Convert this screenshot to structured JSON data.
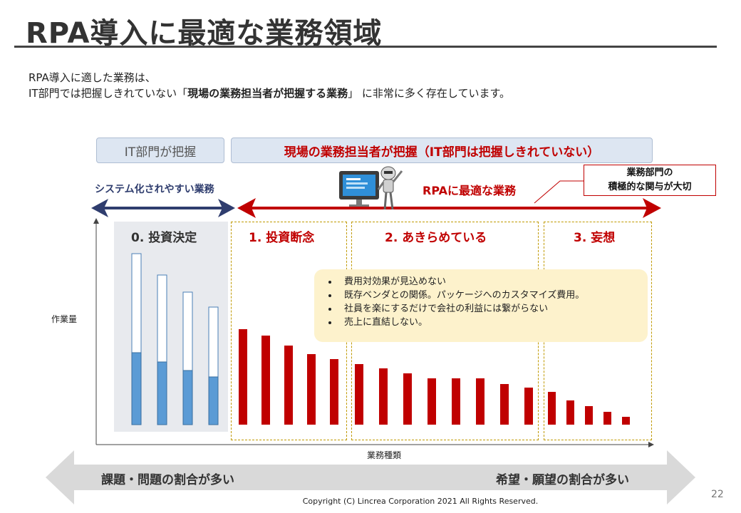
{
  "slide": {
    "title": "RPA導入に最適な業務領域",
    "intro_line1": "RPA導入に適した業務は、",
    "intro_line2_pre": "IT部門では把握しきれていない「",
    "intro_line2_bold": "現場の業務担当者が把握する業務",
    "intro_line2_post": "」 に非常に多く存在しています。",
    "page_number": "22",
    "copyright": "Copyright (C) Lincrea Corporation 2021 All Rights Reserved."
  },
  "header": {
    "it_label": "IT部門が把握",
    "field_label": "現場の業務担当者が把握（IT部門は把握しきれていない）"
  },
  "arrows": {
    "system_label": "システム化されやすい業務",
    "rpa_label": "RPAに最適な業務",
    "callout_line1": "業務部門の",
    "callout_line2": "積極的な関与が大切"
  },
  "sections": [
    {
      "label": "0. 投資決定"
    },
    {
      "label": "1. 投資断念"
    },
    {
      "label": "2. あきらめている"
    },
    {
      "label": "3. 妄想"
    }
  ],
  "notes": [
    "費用対効果が見込めない",
    "既存ベンダとの関係。パッケージへのカスタマイズ費用。",
    "社員を楽にするだけで会社の利益には繋がらない",
    "売上に直結しない。"
  ],
  "bottom": {
    "left_label": "課題・問題の割合が多い",
    "right_label": "希望・願望の割合が多い"
  },
  "colors": {
    "accent_red": "#c00000",
    "navy": "#2f3d6e",
    "bar_blue": "#5b9bd5",
    "highlight_yellow": "#fdf2cc"
  },
  "chart_data": {
    "type": "bar",
    "xlabel": "業務種類",
    "ylabel": "作業量",
    "ylim": [
      0,
      240
    ],
    "groups": [
      {
        "section": "0. 投資決定",
        "color": "#5b9bd5",
        "total": [
          240,
          210,
          186,
          165
        ],
        "filled": [
          101,
          88,
          76,
          67
        ]
      },
      {
        "section": "1. 投資断念",
        "color": "#c00000",
        "values": [
          134,
          125,
          111,
          99,
          92
        ]
      },
      {
        "section": "2. あきらめている",
        "color": "#c00000",
        "values": [
          85,
          79,
          72,
          65,
          65,
          65,
          57,
          52
        ]
      },
      {
        "section": "3. 妄想",
        "color": "#c00000",
        "values": [
          46,
          34,
          26,
          18,
          11
        ]
      }
    ]
  }
}
